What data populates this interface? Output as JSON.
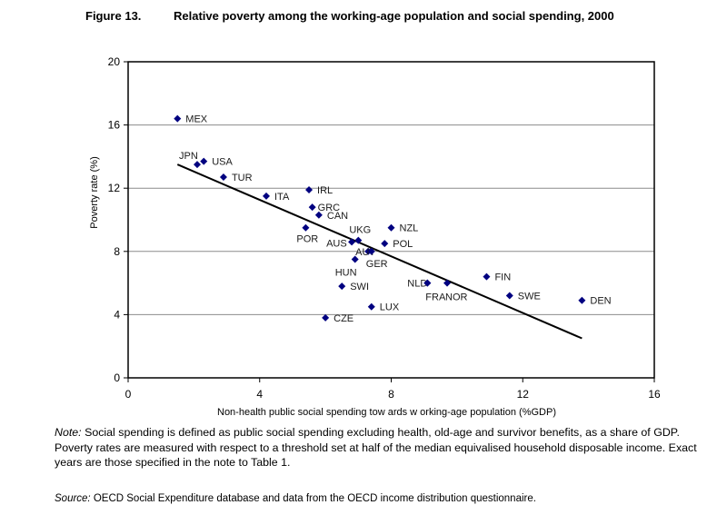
{
  "figure": {
    "number": "Figure 13.",
    "title": "Relative poverty among the working-age population and social spending, 2000"
  },
  "note": {
    "label": "Note:",
    "text": " Social spending is defined as public social spending excluding health, old-age and survivor benefits, as a share of GDP. Poverty rates are measured with respect to a threshold set at half of the median equivalised household disposable income. Exact years are those specified in the note to Table 1."
  },
  "source": {
    "label": "Source:",
    "text": " OECD Social Expenditure database and data from the OECD income distribution questionnaire."
  },
  "chart_data": {
    "type": "scatter",
    "title": "Relative poverty among the working-age population and social spending, 2000",
    "xlabel": "Non-health public social spending tow ards w orking-age population (%GDP)",
    "ylabel": "Poverty rate (%)",
    "xlim": [
      0,
      16
    ],
    "ylim": [
      0,
      20
    ],
    "xticks": [
      0,
      4,
      8,
      12,
      16
    ],
    "yticks": [
      0,
      4,
      8,
      12,
      16,
      20
    ],
    "grid": "horizontal",
    "marker_color": "#000080",
    "points": [
      {
        "label": "MEX",
        "x": 1.5,
        "y": 16.4
      },
      {
        "label": "JPN",
        "x": 2.1,
        "y": 13.5
      },
      {
        "label": "USA",
        "x": 2.3,
        "y": 13.7
      },
      {
        "label": "TUR",
        "x": 2.9,
        "y": 12.7
      },
      {
        "label": "ITA",
        "x": 4.2,
        "y": 11.5
      },
      {
        "label": "IRL",
        "x": 5.5,
        "y": 11.9
      },
      {
        "label": "GRC",
        "x": 5.6,
        "y": 10.8
      },
      {
        "label": "CAN",
        "x": 5.8,
        "y": 10.3
      },
      {
        "label": "POR",
        "x": 5.4,
        "y": 9.5
      },
      {
        "label": "UKG",
        "x": 7.0,
        "y": 8.7
      },
      {
        "label": "NZL",
        "x": 8.0,
        "y": 9.5
      },
      {
        "label": "POL",
        "x": 7.8,
        "y": 8.5
      },
      {
        "label": "AUS",
        "x": 6.8,
        "y": 8.6
      },
      {
        "label": "AUT",
        "x": 7.3,
        "y": 8.0
      },
      {
        "label": "GER",
        "x": 7.4,
        "y": 8.0
      },
      {
        "label": "HUN",
        "x": 6.9,
        "y": 7.5
      },
      {
        "label": "SWI",
        "x": 6.5,
        "y": 5.8
      },
      {
        "label": "LUX",
        "x": 7.4,
        "y": 4.5
      },
      {
        "label": "CZE",
        "x": 6.0,
        "y": 3.8
      },
      {
        "label": "NLD",
        "x": 9.1,
        "y": 6.0
      },
      {
        "label": "FRA",
        "x": 9.1,
        "y": 6.0
      },
      {
        "label": "NOR",
        "x": 9.7,
        "y": 6.0
      },
      {
        "label": "FIN",
        "x": 10.9,
        "y": 6.4
      },
      {
        "label": "SWE",
        "x": 11.6,
        "y": 5.2
      },
      {
        "label": "DEN",
        "x": 13.8,
        "y": 4.9
      }
    ],
    "trendline": {
      "x": [
        1.5,
        13.8
      ],
      "y": [
        13.5,
        2.5
      ]
    }
  }
}
